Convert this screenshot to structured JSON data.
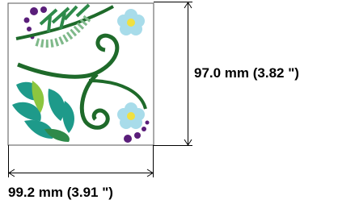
{
  "dimensions": {
    "height": "97.0 mm (3.82 \")",
    "width": "99.2 mm (3.91 \")"
  }
}
